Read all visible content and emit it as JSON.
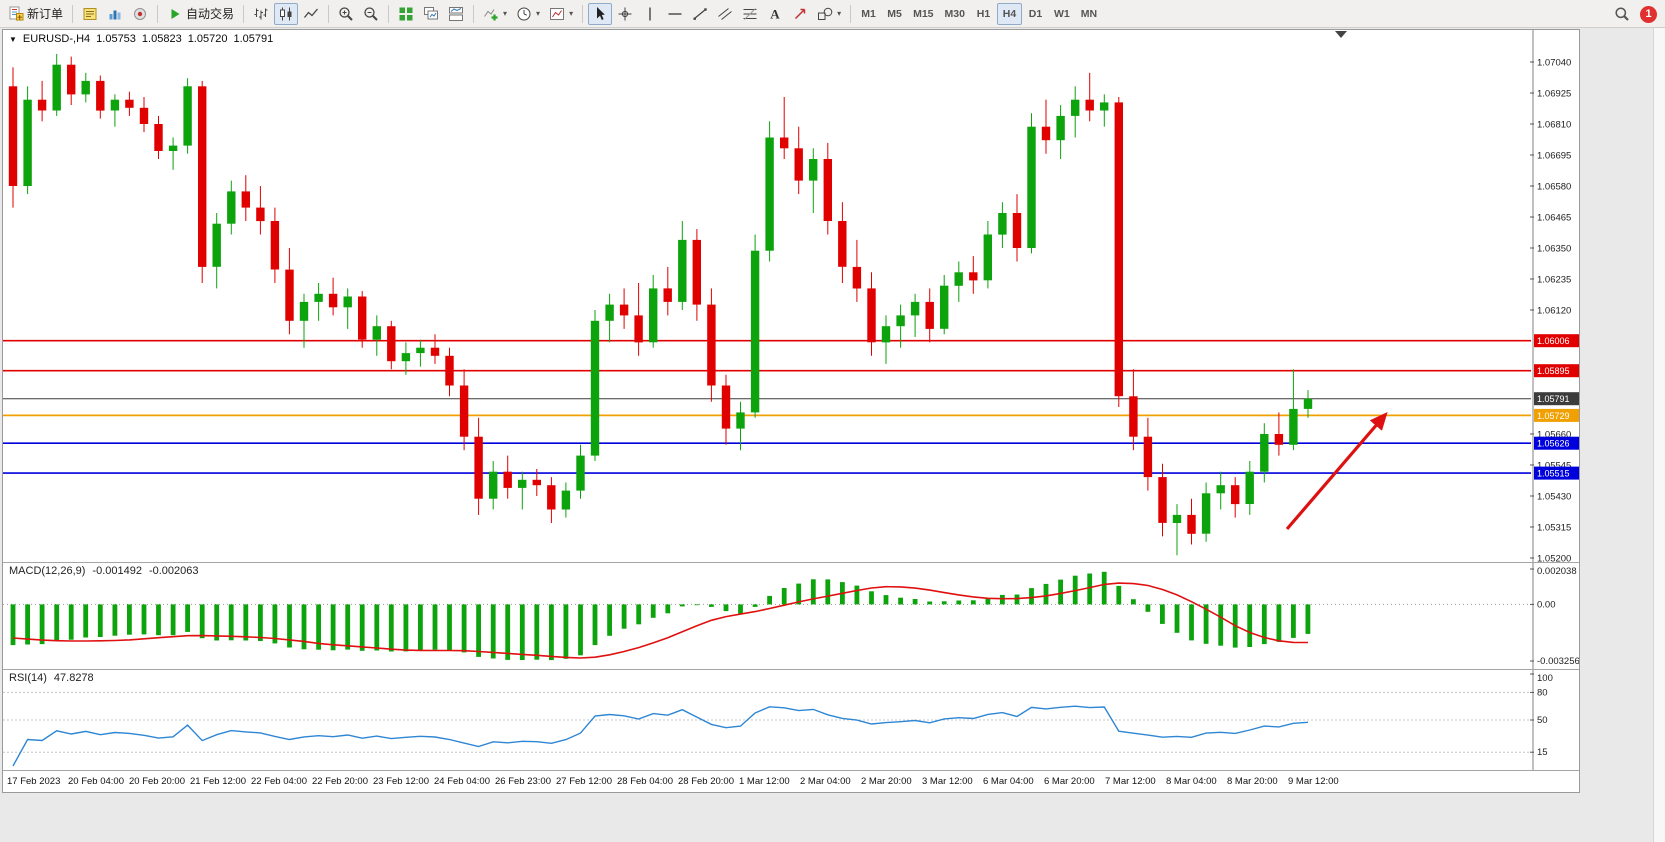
{
  "toolbar": {
    "caret_glyph": "▾",
    "groups": [
      {
        "name": "trade",
        "buttons": [
          {
            "name": "new-order",
            "icon": "new-order",
            "label": "新订单"
          }
        ]
      },
      {
        "name": "windows",
        "buttons": [
          {
            "name": "metaeditor",
            "icon": "metaeditor"
          },
          {
            "name": "market-watch",
            "icon": "market-watch"
          },
          {
            "name": "strategy-tester",
            "icon": "sounds"
          }
        ]
      },
      {
        "name": "autotrade",
        "buttons": [
          {
            "name": "auto-trading",
            "icon": "play",
            "label": "自动交易"
          }
        ]
      },
      {
        "name": "chart-type",
        "buttons": [
          {
            "name": "bar-chart",
            "icon": "bars"
          },
          {
            "name": "candlestick-chart",
            "icon": "candles",
            "active": true
          },
          {
            "name": "line-chart",
            "icon": "linechart"
          }
        ]
      },
      {
        "name": "zoom",
        "buttons": [
          {
            "name": "zoom-in",
            "icon": "zoom-in"
          },
          {
            "name": "zoom-out",
            "icon": "zoom-out"
          }
        ]
      },
      {
        "name": "arrange",
        "buttons": [
          {
            "name": "tile-windows",
            "icon": "tile"
          },
          {
            "name": "cascade-windows",
            "icon": "cascade"
          },
          {
            "name": "arrange-windows",
            "icon": "arrange"
          }
        ]
      },
      {
        "name": "chart-tools",
        "buttons": [
          {
            "name": "indicators",
            "icon": "indicator-plus",
            "caret": true
          },
          {
            "name": "periods",
            "icon": "clock",
            "caret": true
          },
          {
            "name": "templates",
            "icon": "template",
            "caret": true
          }
        ]
      },
      {
        "name": "drawing",
        "buttons": [
          {
            "name": "cursor",
            "icon": "cursor",
            "active": true
          },
          {
            "name": "crosshair",
            "icon": "crosshair"
          },
          {
            "name": "vertical-line",
            "icon": "vline"
          },
          {
            "name": "horizontal-line",
            "icon": "hline"
          },
          {
            "name": "trendline",
            "icon": "trendline"
          },
          {
            "name": "equidistant-channel",
            "icon": "channel"
          },
          {
            "name": "fibonacci",
            "icon": "fibo"
          },
          {
            "name": "text-label",
            "icon": "text"
          },
          {
            "name": "arrows-tool",
            "icon": "arrows"
          },
          {
            "name": "shapes",
            "icon": "shapes",
            "caret": true
          }
        ]
      },
      {
        "name": "timeframes",
        "buttons": [
          {
            "name": "tf-m1",
            "label": "M1",
            "tf": true
          },
          {
            "name": "tf-m5",
            "label": "M5",
            "tf": true
          },
          {
            "name": "tf-m15",
            "label": "M15",
            "tf": true
          },
          {
            "name": "tf-m30",
            "label": "M30",
            "tf": true
          },
          {
            "name": "tf-h1",
            "label": "H1",
            "tf": true
          },
          {
            "name": "tf-h4",
            "label": "H4",
            "tf": true,
            "active": true
          },
          {
            "name": "tf-d1",
            "label": "D1",
            "tf": true
          },
          {
            "name": "tf-w1",
            "label": "W1",
            "tf": true
          },
          {
            "name": "tf-mn",
            "label": "MN",
            "tf": true
          }
        ]
      }
    ]
  },
  "status_icons": {
    "badge_count": "1"
  },
  "chart": {
    "header": {
      "collapse_icon": "▼",
      "symbol_period": "EURUSD-,H4",
      "open": "1.05753",
      "high": "1.05823",
      "low": "1.05720",
      "close": "1.05791"
    },
    "price_axis": {
      "min": 1.052,
      "max": 1.0704,
      "ticks": [
        "1.07040",
        "1.06925",
        "1.06810",
        "1.06695",
        "1.06580",
        "1.06465",
        "1.06350",
        "1.06235",
        "1.06120",
        "1.05660",
        "1.05545",
        "1.05430",
        "1.05315",
        "1.05200"
      ]
    },
    "levels": [
      {
        "name": "resistance-1",
        "label": "1.06006",
        "value": 1.06006,
        "color": "#e00000",
        "line_width": 1.6
      },
      {
        "name": "resistance-2",
        "label": "1.05895",
        "value": 1.05895,
        "color": "#e00000",
        "line_width": 1.6
      },
      {
        "name": "current-price",
        "label": "1.05791",
        "value": 1.05791,
        "color": "#3c3c3c",
        "line_width": 1
      },
      {
        "name": "pivot-line",
        "label": "1.05729",
        "value": 1.05729,
        "color": "#f0a000",
        "line_width": 1.8
      },
      {
        "name": "support-1",
        "label": "1.05626",
        "value": 1.05626,
        "color": "#0000dd",
        "line_width": 1.6
      },
      {
        "name": "support-2",
        "label": "1.05515",
        "value": 1.05515,
        "color": "#0000dd",
        "line_width": 1.6
      }
    ],
    "arrow": {
      "color": "#dd1111"
    },
    "time_axis": [
      "17 Feb 2023",
      "20 Feb 04:00",
      "20 Feb 20:00",
      "21 Feb 12:00",
      "22 Feb 04:00",
      "22 Feb 20:00",
      "23 Feb 12:00",
      "24 Feb 04:00",
      "26 Feb 23:00",
      "27 Feb 12:00",
      "28 Feb 04:00",
      "28 Feb 20:00",
      "1 Mar 12:00",
      "2 Mar 04:00",
      "2 Mar 20:00",
      "3 Mar 12:00",
      "6 Mar 04:00",
      "6 Mar 20:00",
      "7 Mar 12:00",
      "8 Mar 04:00",
      "8 Mar 20:00",
      "9 Mar 12:00"
    ]
  },
  "chart_data": {
    "type": "candlestick",
    "symbol": "EURUSD-",
    "period": "H4",
    "bull_color": "#0ca30c",
    "bear_color": "#e00000",
    "history_seed": {
      "bars": 30,
      "start": 1.08,
      "end": 1.0697
    },
    "candles": [
      [
        1.0695,
        1.0702,
        1.065,
        1.0658
      ],
      [
        1.0658,
        1.0695,
        1.0655,
        1.069
      ],
      [
        1.069,
        1.0697,
        1.0682,
        1.0686
      ],
      [
        1.0686,
        1.0707,
        1.0684,
        1.0703
      ],
      [
        1.0703,
        1.0706,
        1.0688,
        1.0692
      ],
      [
        1.0692,
        1.07,
        1.0689,
        1.0697
      ],
      [
        1.0697,
        1.0699,
        1.0683,
        1.0686
      ],
      [
        1.0686,
        1.0692,
        1.068,
        1.069
      ],
      [
        1.069,
        1.0693,
        1.0684,
        1.0687
      ],
      [
        1.0687,
        1.0691,
        1.0678,
        1.0681
      ],
      [
        1.0681,
        1.0684,
        1.0668,
        1.0671
      ],
      [
        1.0671,
        1.0676,
        1.0664,
        1.0673
      ],
      [
        1.0673,
        1.0698,
        1.067,
        1.0695
      ],
      [
        1.0695,
        1.0697,
        1.0622,
        1.0628
      ],
      [
        1.0628,
        1.0648,
        1.062,
        1.0644
      ],
      [
        1.0644,
        1.066,
        1.064,
        1.0656
      ],
      [
        1.0656,
        1.0662,
        1.0645,
        1.065
      ],
      [
        1.065,
        1.0658,
        1.064,
        1.0645
      ],
      [
        1.0645,
        1.065,
        1.0622,
        1.0627
      ],
      [
        1.0627,
        1.0635,
        1.0603,
        1.0608
      ],
      [
        1.0608,
        1.0618,
        1.0598,
        1.0615
      ],
      [
        1.0615,
        1.0622,
        1.0608,
        1.0618
      ],
      [
        1.0618,
        1.0624,
        1.061,
        1.0613
      ],
      [
        1.0613,
        1.062,
        1.0605,
        1.0617
      ],
      [
        1.0617,
        1.0619,
        1.0598,
        1.0601
      ],
      [
        1.0601,
        1.061,
        1.0595,
        1.0606
      ],
      [
        1.0606,
        1.0608,
        1.059,
        1.0593
      ],
      [
        1.0593,
        1.06,
        1.0588,
        1.0596
      ],
      [
        1.0596,
        1.0601,
        1.0591,
        1.0598
      ],
      [
        1.0598,
        1.0603,
        1.0592,
        1.0595
      ],
      [
        1.0595,
        1.0598,
        1.058,
        1.0584
      ],
      [
        1.0584,
        1.059,
        1.056,
        1.0565
      ],
      [
        1.0565,
        1.0572,
        1.0536,
        1.0542
      ],
      [
        1.0542,
        1.0556,
        1.0538,
        1.0552
      ],
      [
        1.0552,
        1.0558,
        1.0542,
        1.0546
      ],
      [
        1.0546,
        1.0552,
        1.0538,
        1.0549
      ],
      [
        1.0549,
        1.0553,
        1.0543,
        1.0547
      ],
      [
        1.0547,
        1.055,
        1.0533,
        1.0538
      ],
      [
        1.0538,
        1.0548,
        1.0535,
        1.0545
      ],
      [
        1.0545,
        1.0562,
        1.0542,
        1.0558
      ],
      [
        1.0558,
        1.0612,
        1.0556,
        1.0608
      ],
      [
        1.0608,
        1.0618,
        1.06,
        1.0614
      ],
      [
        1.0614,
        1.062,
        1.0605,
        1.061
      ],
      [
        1.061,
        1.0622,
        1.0595,
        1.06
      ],
      [
        1.06,
        1.0625,
        1.0598,
        1.062
      ],
      [
        1.062,
        1.0628,
        1.061,
        1.0615
      ],
      [
        1.0615,
        1.0645,
        1.0612,
        1.0638
      ],
      [
        1.0638,
        1.0642,
        1.0608,
        1.0614
      ],
      [
        1.0614,
        1.062,
        1.0578,
        1.0584
      ],
      [
        1.0584,
        1.0588,
        1.0562,
        1.0568
      ],
      [
        1.0568,
        1.0578,
        1.056,
        1.0574
      ],
      [
        1.0574,
        1.064,
        1.0572,
        1.0634
      ],
      [
        1.0634,
        1.0682,
        1.063,
        1.0676
      ],
      [
        1.0676,
        1.0691,
        1.0668,
        1.0672
      ],
      [
        1.0672,
        1.068,
        1.0655,
        1.066
      ],
      [
        1.066,
        1.0672,
        1.0648,
        1.0668
      ],
      [
        1.0668,
        1.0674,
        1.064,
        1.0645
      ],
      [
        1.0645,
        1.0652,
        1.0622,
        1.0628
      ],
      [
        1.0628,
        1.0638,
        1.0615,
        1.062
      ],
      [
        1.062,
        1.0626,
        1.0595,
        1.06
      ],
      [
        1.06,
        1.061,
        1.0592,
        1.0606
      ],
      [
        1.0606,
        1.0614,
        1.0598,
        1.061
      ],
      [
        1.061,
        1.0618,
        1.0602,
        1.0615
      ],
      [
        1.0615,
        1.062,
        1.06,
        1.0605
      ],
      [
        1.0605,
        1.0625,
        1.0603,
        1.0621
      ],
      [
        1.0621,
        1.063,
        1.0615,
        1.0626
      ],
      [
        1.0626,
        1.0632,
        1.0618,
        1.0623
      ],
      [
        1.0623,
        1.0645,
        1.062,
        1.064
      ],
      [
        1.064,
        1.0652,
        1.0635,
        1.0648
      ],
      [
        1.0648,
        1.0655,
        1.063,
        1.0635
      ],
      [
        1.0635,
        1.0685,
        1.0633,
        1.068
      ],
      [
        1.068,
        1.069,
        1.067,
        1.0675
      ],
      [
        1.0675,
        1.0688,
        1.0668,
        1.0684
      ],
      [
        1.0684,
        1.0695,
        1.0676,
        1.069
      ],
      [
        1.069,
        1.07,
        1.0682,
        1.0686
      ],
      [
        1.0686,
        1.0692,
        1.068,
        1.0689
      ],
      [
        1.0689,
        1.0691,
        1.0576,
        1.058
      ],
      [
        1.058,
        1.059,
        1.056,
        1.0565
      ],
      [
        1.0565,
        1.0572,
        1.0545,
        1.055
      ],
      [
        1.055,
        1.0555,
        1.0528,
        1.0533
      ],
      [
        1.0533,
        1.054,
        1.0521,
        1.0536
      ],
      [
        1.0536,
        1.0542,
        1.0525,
        1.0529
      ],
      [
        1.0529,
        1.0548,
        1.0526,
        1.0544
      ],
      [
        1.0544,
        1.0552,
        1.0538,
        1.0547
      ],
      [
        1.0547,
        1.055,
        1.0535,
        1.054
      ],
      [
        1.054,
        1.0556,
        1.0536,
        1.0552
      ],
      [
        1.0552,
        1.057,
        1.0548,
        1.0566
      ],
      [
        1.0566,
        1.0574,
        1.0558,
        1.0562
      ],
      [
        1.0562,
        1.059,
        1.056,
        1.05753
      ],
      [
        1.05753,
        1.05823,
        1.0572,
        1.05791
      ]
    ]
  },
  "macd": {
    "title": "MACD(12,26,9)",
    "value1": "-0.001492",
    "value2": "-0.002063",
    "range": [
      -0.003256,
      0.002038
    ],
    "signal_color": "#e01010",
    "scale": [
      {
        "value": 0.002038,
        "label": "0.002038"
      },
      {
        "value": 0,
        "label": "0.00"
      },
      {
        "value": -0.003256,
        "label": "-0.003256"
      }
    ]
  },
  "rsi": {
    "title": "RSI(14)",
    "value": "47.8278",
    "period": 14,
    "color": "#2e86d4",
    "levels": [
      {
        "value": 100,
        "label": "100",
        "dashed": false
      },
      {
        "value": 80,
        "label": "80",
        "dashed": true
      },
      {
        "value": 50,
        "label": "50",
        "dashed": true
      },
      {
        "value": 15,
        "label": "15",
        "dashed": true
      }
    ]
  }
}
